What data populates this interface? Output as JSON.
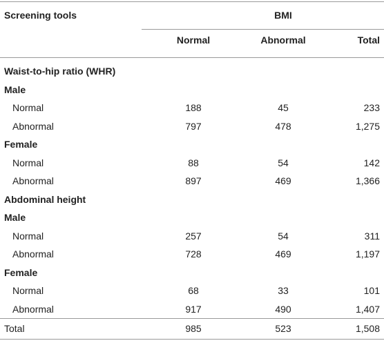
{
  "table": {
    "header": {
      "stub": "Screening tools",
      "group": "BMI",
      "columns": [
        "Normal",
        "Abnormal",
        "Total"
      ]
    },
    "sections": [
      {
        "title": "Waist-to-hip ratio (WHR)",
        "groups": [
          {
            "title": "Male",
            "rows": [
              {
                "label": "Normal",
                "values": [
                  "188",
                  "45",
                  "233"
                ]
              },
              {
                "label": "Abnormal",
                "values": [
                  "797",
                  "478",
                  "1,275"
                ]
              }
            ]
          },
          {
            "title": "Female",
            "rows": [
              {
                "label": "Normal",
                "values": [
                  "88",
                  "54",
                  "142"
                ]
              },
              {
                "label": "Abnormal",
                "values": [
                  "897",
                  "469",
                  "1,366"
                ]
              }
            ]
          }
        ]
      },
      {
        "title": "Abdominal height",
        "groups": [
          {
            "title": "Male",
            "rows": [
              {
                "label": "Normal",
                "values": [
                  "257",
                  "54",
                  "311"
                ]
              },
              {
                "label": "Abnormal",
                "values": [
                  "728",
                  "469",
                  "1,197"
                ]
              }
            ]
          },
          {
            "title": "Female",
            "rows": [
              {
                "label": "Normal",
                "values": [
                  "68",
                  "33",
                  "101"
                ]
              },
              {
                "label": "Abnormal",
                "values": [
                  "917",
                  "490",
                  "1,407"
                ]
              }
            ]
          }
        ]
      }
    ],
    "total": {
      "label": "Total",
      "values": [
        "985",
        "523",
        "1,508"
      ]
    }
  }
}
